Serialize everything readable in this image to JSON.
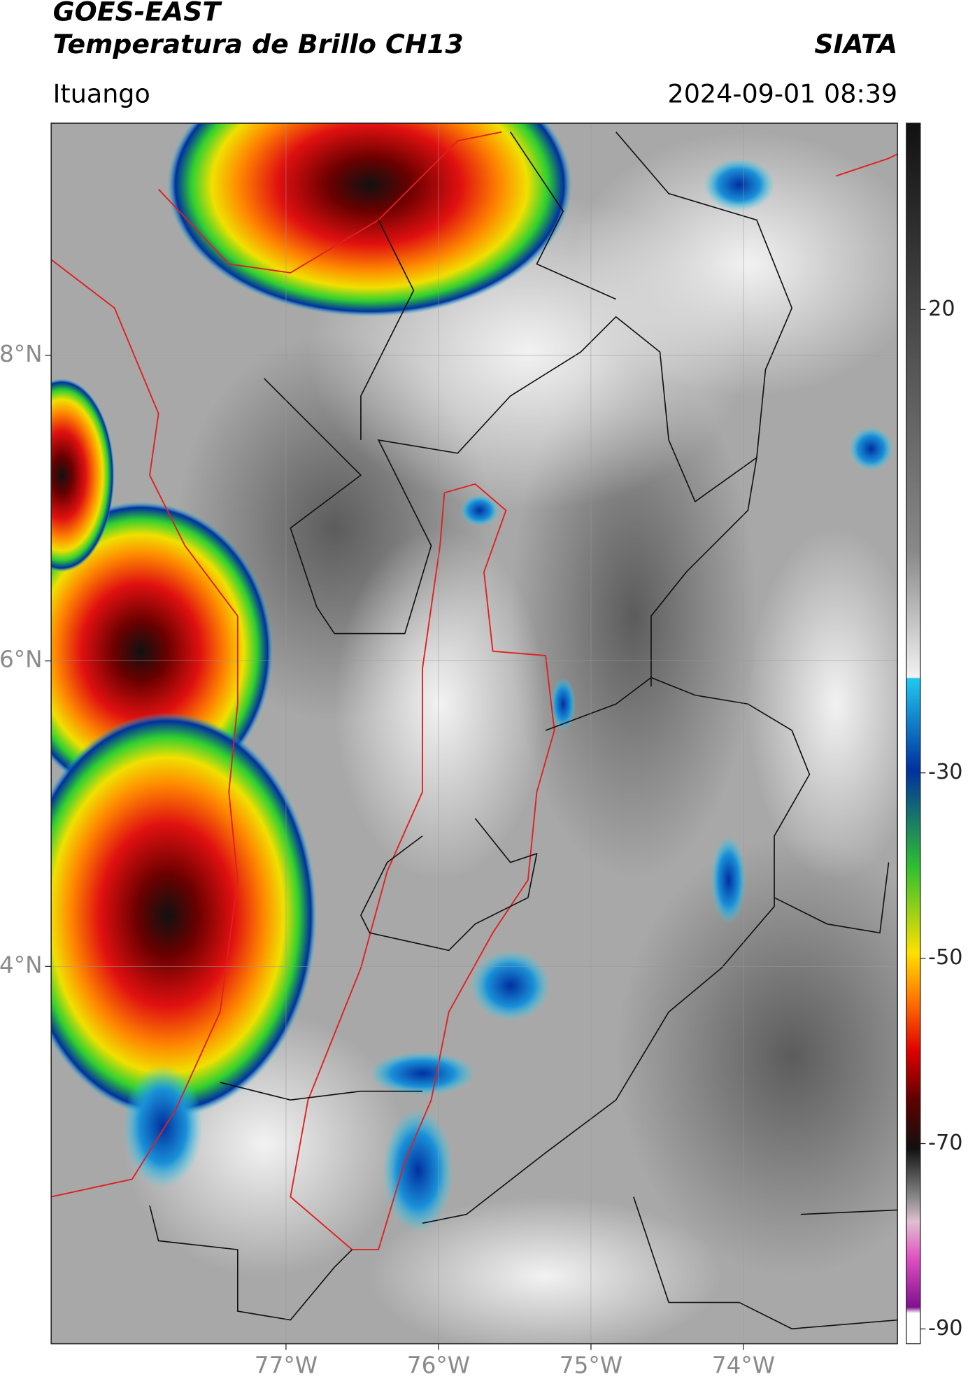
{
  "header": {
    "title": "GOES-EAST",
    "subtitle": "Temperatura de Brillo CH13",
    "source": "SIATA",
    "location": "Ituango",
    "datetime": "2024-09-01 08:39"
  },
  "map": {
    "xlim": [
      -78.54,
      -72.99
    ],
    "ylim": [
      1.53,
      9.52
    ],
    "xticks": [
      {
        "value": -77,
        "label": "77°W"
      },
      {
        "value": -76,
        "label": "76°W"
      },
      {
        "value": -75,
        "label": "75°W"
      },
      {
        "value": -74,
        "label": "74°W"
      }
    ],
    "yticks": [
      {
        "value": 8,
        "label": "8°N"
      },
      {
        "value": 6,
        "label": "6°N"
      },
      {
        "value": 4,
        "label": "4°N"
      }
    ],
    "grid": true
  },
  "colorbar": {
    "lim": [
      -91.6,
      40.1
    ],
    "ticks": [
      20,
      -30,
      -50,
      -70,
      -90
    ]
  }
}
